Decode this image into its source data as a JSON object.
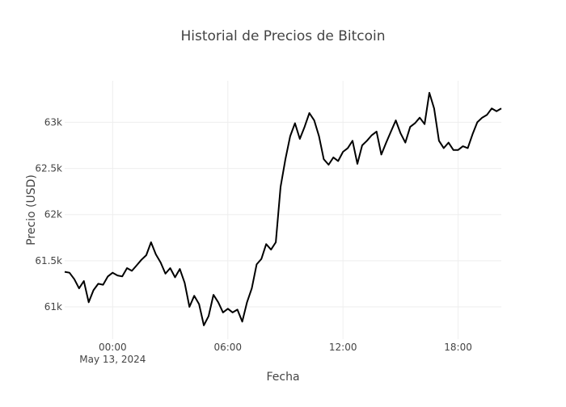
{
  "chart_data": {
    "type": "line",
    "title": "Historial de Precios de Bitcoin",
    "xlabel": "Fecha",
    "ylabel": "Precio (USD)",
    "x_type": "datetime",
    "xlim": [
      "2024-05-12T21:30",
      "2024-05-13T20:15"
    ],
    "ylim": [
      60650,
      63450
    ],
    "grid": true,
    "legend": "none",
    "line_color": "#000000",
    "grid_color": "#eeeeee",
    "x_ticks": [
      {
        "value": "2024-05-13T00:00",
        "label": "00:00",
        "sublabel": "May 13, 2024"
      },
      {
        "value": "2024-05-13T06:00",
        "label": "06:00",
        "sublabel": ""
      },
      {
        "value": "2024-05-13T12:00",
        "label": "12:00",
        "sublabel": ""
      },
      {
        "value": "2024-05-13T18:00",
        "label": "18:00",
        "sublabel": ""
      }
    ],
    "y_ticks": [
      {
        "value": 61000,
        "label": "61k"
      },
      {
        "value": 61500,
        "label": "61.5k"
      },
      {
        "value": 62000,
        "label": "62k"
      },
      {
        "value": 62500,
        "label": "62.5k"
      },
      {
        "value": 63000,
        "label": "63k"
      }
    ],
    "series": [
      {
        "x": [
          "2024-05-12T21:30",
          "2024-05-12T21:45",
          "2024-05-12T22:00",
          "2024-05-12T22:15",
          "2024-05-12T22:30",
          "2024-05-12T22:45",
          "2024-05-12T23:00",
          "2024-05-12T23:15",
          "2024-05-12T23:30",
          "2024-05-12T23:45",
          "2024-05-13T00:00",
          "2024-05-13T00:15",
          "2024-05-13T00:30",
          "2024-05-13T00:45",
          "2024-05-13T01:00",
          "2024-05-13T01:15",
          "2024-05-13T01:30",
          "2024-05-13T01:45",
          "2024-05-13T02:00",
          "2024-05-13T02:15",
          "2024-05-13T02:30",
          "2024-05-13T02:45",
          "2024-05-13T03:00",
          "2024-05-13T03:15",
          "2024-05-13T03:30",
          "2024-05-13T03:45",
          "2024-05-13T04:00",
          "2024-05-13T04:15",
          "2024-05-13T04:30",
          "2024-05-13T04:45",
          "2024-05-13T05:00",
          "2024-05-13T05:15",
          "2024-05-13T05:30",
          "2024-05-13T05:45",
          "2024-05-13T06:00",
          "2024-05-13T06:15",
          "2024-05-13T06:30",
          "2024-05-13T06:45",
          "2024-05-13T07:00",
          "2024-05-13T07:15",
          "2024-05-13T07:30",
          "2024-05-13T07:45",
          "2024-05-13T08:00",
          "2024-05-13T08:15",
          "2024-05-13T08:30",
          "2024-05-13T08:45",
          "2024-05-13T09:00",
          "2024-05-13T09:15",
          "2024-05-13T09:30",
          "2024-05-13T09:45",
          "2024-05-13T10:00",
          "2024-05-13T10:15",
          "2024-05-13T10:30",
          "2024-05-13T10:45",
          "2024-05-13T11:00",
          "2024-05-13T11:15",
          "2024-05-13T11:30",
          "2024-05-13T11:45",
          "2024-05-13T12:00",
          "2024-05-13T12:15",
          "2024-05-13T12:30",
          "2024-05-13T12:45",
          "2024-05-13T13:00",
          "2024-05-13T13:15",
          "2024-05-13T13:30",
          "2024-05-13T13:45",
          "2024-05-13T14:00",
          "2024-05-13T14:15",
          "2024-05-13T14:30",
          "2024-05-13T14:45",
          "2024-05-13T15:00",
          "2024-05-13T15:15",
          "2024-05-13T15:30",
          "2024-05-13T15:45",
          "2024-05-13T16:00",
          "2024-05-13T16:15",
          "2024-05-13T16:30",
          "2024-05-13T16:45",
          "2024-05-13T17:00",
          "2024-05-13T17:15",
          "2024-05-13T17:30",
          "2024-05-13T17:45",
          "2024-05-13T18:00",
          "2024-05-13T18:15",
          "2024-05-13T18:30",
          "2024-05-13T18:45",
          "2024-05-13T19:00",
          "2024-05-13T19:15",
          "2024-05-13T19:30",
          "2024-05-13T19:45",
          "2024-05-13T20:00",
          "2024-05-13T20:15"
        ],
        "y": [
          61380,
          61370,
          61300,
          61200,
          61280,
          61050,
          61180,
          61250,
          61240,
          61330,
          61370,
          61340,
          61330,
          61420,
          61390,
          61450,
          61510,
          61560,
          61700,
          61570,
          61480,
          61360,
          61420,
          61320,
          61410,
          61260,
          61000,
          61120,
          61030,
          60800,
          60900,
          61130,
          61050,
          60940,
          60980,
          60940,
          60970,
          60840,
          61050,
          61200,
          61460,
          61520,
          61680,
          61620,
          61700,
          62300,
          62600,
          62850,
          62990,
          62820,
          62950,
          63100,
          63020,
          62850,
          62600,
          62540,
          62620,
          62580,
          62680,
          62720,
          62800,
          62550,
          62750,
          62800,
          62860,
          62900,
          62650,
          62780,
          62900,
          63020,
          62880,
          62780,
          62950,
          62990,
          63050,
          62980,
          63320,
          63150,
          62800,
          62720,
          62780,
          62700,
          62700,
          62740,
          62720,
          62870,
          63000,
          63050,
          63080,
          63150,
          63120,
          63150
        ]
      }
    ]
  }
}
